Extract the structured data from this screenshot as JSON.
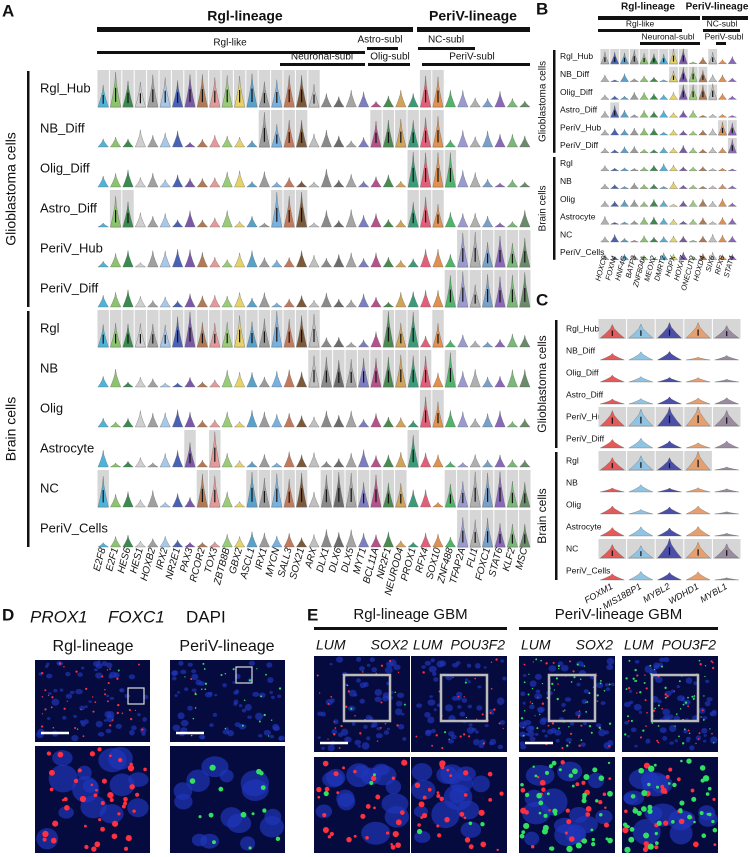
{
  "panel_a": {
    "letter": "A",
    "lineages": [
      "Rgl-lineage",
      "PeriV-lineage"
    ],
    "sublineages": [
      "Rgl-like",
      "Astro-subl",
      "Neuronal-subl",
      "Olig-subl",
      "NC-subl",
      "PeriV-subl"
    ],
    "row_groups": [
      {
        "label": "Glioblastoma cells",
        "rows": [
          "Rgl_Hub",
          "NB_Diff",
          "Olig_Diff",
          "Astro_Diff",
          "PeriV_Hub",
          "PeriV_Diff"
        ]
      },
      {
        "label": "Brain cells",
        "rows": [
          "Rgl",
          "NB",
          "Olig",
          "Astrocyte",
          "NC",
          "PeriV_Cells"
        ]
      }
    ],
    "genes": [
      "E2F8",
      "E2F1",
      "HES6",
      "HES1",
      "HOXB2",
      "IRX2",
      "NR2E1",
      "PAX3",
      "RCOR2",
      "TOX3",
      "ZBTB8B",
      "GBX2",
      "ASCL1",
      "IRX1",
      "MYCN",
      "SALL3",
      "SOX21",
      "ARX",
      "DLX1",
      "DLX6",
      "DLX5",
      "MYT1",
      "BCL11A",
      "NR2F1",
      "NEUROD4",
      "PROX1",
      "RFX4",
      "SOX10",
      "ZNF488",
      "TFAP2A",
      "FLI1",
      "FOXC1",
      "STAT6",
      "KLF2",
      "MSC"
    ]
  },
  "panel_b": {
    "letter": "B",
    "lineages": [
      "Rgl-lineage",
      "PeriV-lineage"
    ],
    "sublineages": [
      "Rgl-like",
      "NC-subl",
      "Neuronal-subl",
      "PeriV-subl"
    ],
    "row_groups": [
      {
        "label": "Glioblastoma cells",
        "rows": [
          "Rgl_Hub",
          "NB_Diff",
          "Olig_Diff",
          "Astro_Diff",
          "PeriV_Hub",
          "PeriV_Diff"
        ]
      },
      {
        "label": "Brain cells",
        "rows": [
          "Rgl",
          "NB",
          "Olig",
          "Astrocyte",
          "NC",
          "PeriV_Cells"
        ]
      }
    ],
    "genes": [
      "HOXC9",
      "FOXN4",
      "HNF4G",
      "BATF3",
      "ZNF804A",
      "MEOX2",
      "DMRT2",
      "HOPX",
      "HOXA7",
      "ONECUT2",
      "HOXD4",
      "SIX6",
      "RFX8",
      "STAT4"
    ]
  },
  "panel_c": {
    "letter": "C",
    "row_groups": [
      {
        "label": "Glioblastoma cells",
        "rows": [
          "Rgl_Hub",
          "NB_Diff",
          "Olig_Diff",
          "Astro_Diff",
          "PeriV_Hub",
          "PeriV_Diff"
        ]
      },
      {
        "label": "Brain cells",
        "rows": [
          "Rgl",
          "NB",
          "Olig",
          "Astrocyte",
          "NC",
          "PeriV_Cells"
        ]
      }
    ],
    "genes": [
      "FOXM1",
      "MIS18BP1",
      "MYBL2",
      "WDHD1",
      "MYBL1"
    ]
  },
  "panel_d": {
    "letter": "D",
    "markers": [
      {
        "text": "PROX1",
        "color": "#e3262f"
      },
      {
        "text": "FOXC1",
        "color": "#17a05d"
      },
      {
        "text": "DAPI",
        "color": "#2b3a9e"
      }
    ],
    "lineages": [
      "Rgl-lineage",
      "PeriV-lineage"
    ]
  },
  "panel_e": {
    "letter": "E",
    "groups": [
      {
        "label": "Rgl-lineage GBM",
        "images": [
          [
            {
              "text": "LUM",
              "color": "#17a05d"
            },
            {
              "text": "SOX2",
              "color": "#e3262f"
            }
          ],
          [
            {
              "text": "LUM",
              "color": "#17a05d"
            },
            {
              "text": "POU3F2",
              "color": "#e3262f"
            }
          ]
        ]
      },
      {
        "label": "PeriV-lineage GBM",
        "images": [
          [
            {
              "text": "LUM",
              "color": "#17a05d"
            },
            {
              "text": "SOX2",
              "color": "#e3262f"
            }
          ],
          [
            {
              "text": "LUM",
              "color": "#17a05d"
            },
            {
              "text": "POU3F2",
              "color": "#e3262f"
            }
          ]
        ]
      }
    ]
  }
}
